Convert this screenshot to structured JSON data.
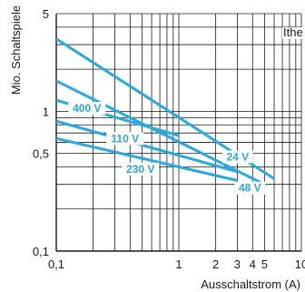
{
  "chart_data": {
    "type": "line",
    "title": "",
    "xlabel": "Ausschaltstrom (A)",
    "ylabel": "Mio. Schaltspiele",
    "x_scale": "log",
    "y_scale": "log",
    "xlim": [
      0.1,
      10
    ],
    "ylim": [
      0.1,
      5
    ],
    "grid": true,
    "x_ticks": [
      0.1,
      1,
      2,
      3,
      4,
      5,
      10
    ],
    "x_tick_labels": [
      "0,1",
      "1",
      "2",
      "3",
      "4",
      "5",
      "10"
    ],
    "y_ticks": [
      0.1,
      0.5,
      1,
      5
    ],
    "y_tick_labels": [
      "0,1",
      "0,5",
      "1",
      "5"
    ],
    "annotation": "Ithe",
    "colors": {
      "series": "#2aa8e0",
      "grid": "#1a1a1a",
      "axis": "#1a1a1a"
    },
    "series": [
      {
        "name": "24 V",
        "x": [
          0.1,
          6
        ],
        "y": [
          3.3,
          0.33
        ]
      },
      {
        "name": "48 V",
        "x": [
          0.1,
          5
        ],
        "y": [
          1.65,
          0.3
        ]
      },
      {
        "name": "400 V",
        "x": [
          0.1,
          1
        ],
        "y": [
          1.2,
          0.67
        ]
      },
      {
        "name": "110 V",
        "x": [
          0.1,
          3
        ],
        "y": [
          0.85,
          0.37
        ]
      },
      {
        "name": "230 V",
        "x": [
          0.1,
          3
        ],
        "y": [
          0.64,
          0.32
        ]
      }
    ]
  }
}
